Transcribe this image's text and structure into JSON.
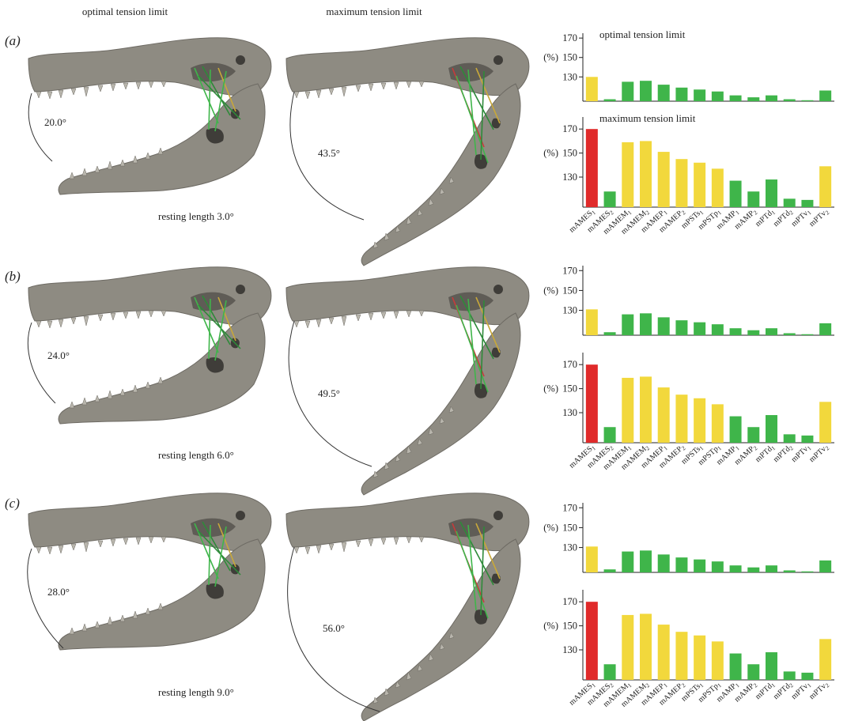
{
  "columns": {
    "optimal": "optimal tension limit",
    "maximum": "maximum tension limit"
  },
  "panels": [
    {
      "letter": "(a)",
      "optimal_angle": "20.0°",
      "max_angle": "43.5°",
      "resting": "resting length 3.0°"
    },
    {
      "letter": "(b)",
      "optimal_angle": "24.0°",
      "max_angle": "49.5°",
      "resting": "resting length 6.0°"
    },
    {
      "letter": "(c)",
      "optimal_angle": "28.0°",
      "max_angle": "56.0°",
      "resting": "resting length 9.0°"
    }
  ],
  "colors": {
    "red": "#e02a2a",
    "yellow": "#f2d83c",
    "green": "#3fb54a"
  },
  "chart_data": [
    {
      "type": "bar",
      "panel": "a",
      "title": "optimal tension limit",
      "ylabel": "(%)",
      "yticks": [
        "170",
        "150",
        "130"
      ],
      "ylim": [
        105,
        175
      ],
      "categories": [
        "mAMES1",
        "mAMES2",
        "mAMEM1",
        "mAMEM2",
        "mAMEP1",
        "mAMEP2",
        "mPSTs1",
        "mPSTp1",
        "mAMP1",
        "mAMP2",
        "mPTd1",
        "mPTd2",
        "mPTv1",
        "mPTv2"
      ],
      "values": [
        130,
        107,
        125,
        126,
        122,
        119,
        117,
        115,
        111,
        109,
        111,
        107,
        106,
        116
      ],
      "bar_colors": [
        "yellow",
        "green",
        "green",
        "green",
        "green",
        "green",
        "green",
        "green",
        "green",
        "green",
        "green",
        "green",
        "green",
        "green"
      ]
    },
    {
      "type": "bar",
      "panel": "a",
      "title": "maximum tension limit",
      "ylabel": "(%)",
      "yticks": [
        "170",
        "150",
        "130"
      ],
      "ylim": [
        105,
        180
      ],
      "categories": [
        "mAMES1",
        "mAMES2",
        "mAMEM1",
        "mAMEM2",
        "mAMEP1",
        "mAMEP2",
        "mPSTs1",
        "mPSTp1",
        "mAMP1",
        "mAMP2",
        "mPTd1",
        "mPTd2",
        "mPTv1",
        "mPTv2"
      ],
      "values": [
        170,
        118,
        159,
        160,
        151,
        145,
        142,
        137,
        127,
        118,
        128,
        112,
        111,
        139
      ],
      "bar_colors": [
        "red",
        "green",
        "yellow",
        "yellow",
        "yellow",
        "yellow",
        "yellow",
        "yellow",
        "green",
        "green",
        "green",
        "green",
        "green",
        "yellow"
      ]
    },
    {
      "type": "bar",
      "panel": "b",
      "title": "",
      "ylabel": "(%)",
      "yticks": [
        "170",
        "150",
        "130"
      ],
      "ylim": [
        105,
        175
      ],
      "categories": [
        "mAMES1",
        "mAMES2",
        "mAMEM1",
        "mAMEM2",
        "mAMEP1",
        "mAMEP2",
        "mPSTs1",
        "mPSTp1",
        "mAMP1",
        "mAMP2",
        "mPTd1",
        "mPTd2",
        "mPTv1",
        "mPTv2"
      ],
      "values": [
        131,
        108,
        126,
        127,
        123,
        120,
        118,
        116,
        112,
        110,
        112,
        107,
        106,
        117
      ],
      "bar_colors": [
        "yellow",
        "green",
        "green",
        "green",
        "green",
        "green",
        "green",
        "green",
        "green",
        "green",
        "green",
        "green",
        "green",
        "green"
      ]
    },
    {
      "type": "bar",
      "panel": "b",
      "title": "",
      "ylabel": "(%)",
      "yticks": [
        "170",
        "150",
        "130"
      ],
      "ylim": [
        105,
        180
      ],
      "categories": [
        "mAMES1",
        "mAMES2",
        "mAMEM1",
        "mAMEM2",
        "mAMEP1",
        "mAMEP2",
        "mPSTs1",
        "mPSTp1",
        "mAMP1",
        "mAMP2",
        "mPTd1",
        "mPTd2",
        "mPTv1",
        "mPTv2"
      ],
      "values": [
        170,
        118,
        159,
        160,
        151,
        145,
        142,
        137,
        127,
        118,
        128,
        112,
        111,
        139
      ],
      "bar_colors": [
        "red",
        "green",
        "yellow",
        "yellow",
        "yellow",
        "yellow",
        "yellow",
        "yellow",
        "green",
        "green",
        "green",
        "green",
        "green",
        "yellow"
      ]
    },
    {
      "type": "bar",
      "panel": "c",
      "title": "",
      "ylabel": "(%)",
      "yticks": [
        "170",
        "150",
        "130"
      ],
      "ylim": [
        105,
        175
      ],
      "categories": [
        "mAMES1",
        "mAMES2",
        "mAMEM1",
        "mAMEM2",
        "mAMEP1",
        "mAMEP2",
        "mPSTs1",
        "mPSTp1",
        "mAMP1",
        "mAMP2",
        "mPTd1",
        "mPTd2",
        "mPTv1",
        "mPTv2"
      ],
      "values": [
        131,
        108,
        126,
        127,
        123,
        120,
        118,
        116,
        112,
        110,
        112,
        107,
        106,
        117
      ],
      "bar_colors": [
        "yellow",
        "green",
        "green",
        "green",
        "green",
        "green",
        "green",
        "green",
        "green",
        "green",
        "green",
        "green",
        "green",
        "green"
      ]
    },
    {
      "type": "bar",
      "panel": "c",
      "title": "",
      "ylabel": "(%)",
      "yticks": [
        "170",
        "150",
        "130"
      ],
      "ylim": [
        105,
        180
      ],
      "categories": [
        "mAMES1",
        "mAMES2",
        "mAMEM1",
        "mAMEM2",
        "mAMEP1",
        "mAMEP2",
        "mPSTs1",
        "mPSTp1",
        "mAMP1",
        "mAMP2",
        "mPTd1",
        "mPTd2",
        "mPTv1",
        "mPTv2"
      ],
      "values": [
        170,
        118,
        159,
        160,
        151,
        145,
        142,
        137,
        127,
        118,
        128,
        112,
        111,
        139
      ],
      "bar_colors": [
        "red",
        "green",
        "yellow",
        "yellow",
        "yellow",
        "yellow",
        "yellow",
        "yellow",
        "green",
        "green",
        "green",
        "green",
        "green",
        "yellow"
      ]
    }
  ]
}
